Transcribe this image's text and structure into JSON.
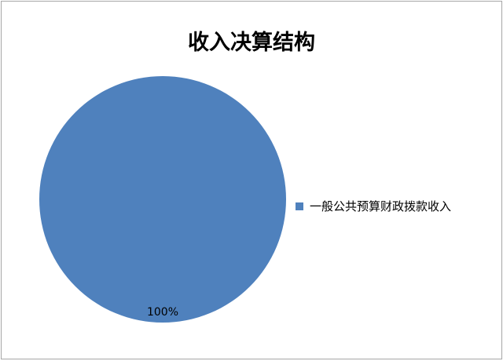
{
  "chart_data": {
    "type": "pie",
    "title": "收入决算结构",
    "categories": [
      "一般公共预算财政拨款收入"
    ],
    "values": [
      100
    ],
    "data_labels": [
      "100%"
    ],
    "colors": [
      "#4f81bd"
    ],
    "legend_position": "right"
  }
}
